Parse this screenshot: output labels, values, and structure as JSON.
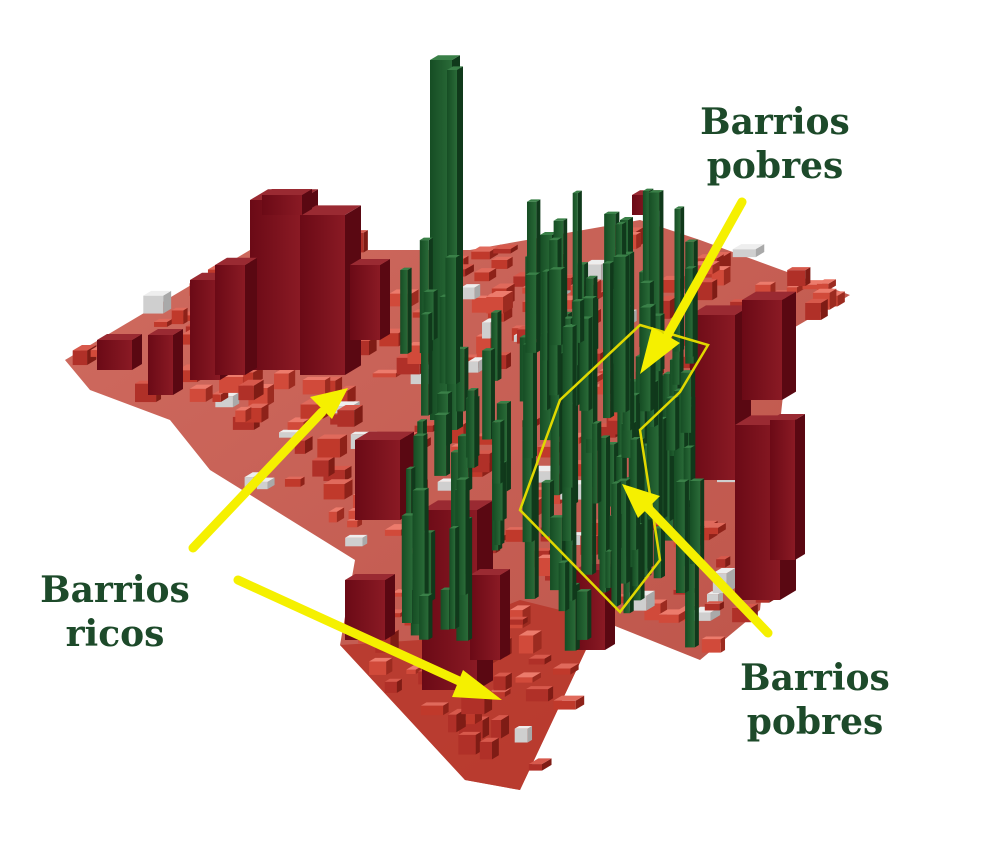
{
  "labels": {
    "poor_top": {
      "line1": "Barrios",
      "line2": "pobres"
    },
    "rich_left": {
      "line1": "Barrios",
      "line2": "ricos"
    },
    "poor_bottom_right": {
      "line1": "Barrios",
      "line2": "pobres"
    }
  },
  "colors": {
    "rich_buildings": "#7a0d1a",
    "city_blocks": "#c0392b",
    "poor_buildings": "#1f5a2e",
    "arrows": "#f5f000",
    "outline": "#e0d800",
    "label_text": "#1d4a2a"
  }
}
